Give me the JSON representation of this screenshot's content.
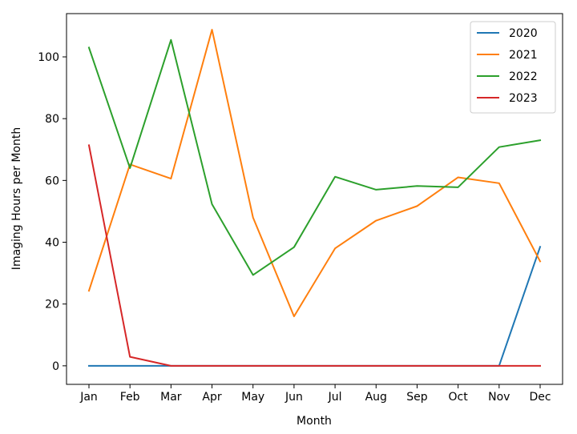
{
  "chart_data": {
    "type": "line",
    "title": "",
    "xlabel": "Month",
    "ylabel": "Imaging Hours per Month",
    "categories": [
      "Jan",
      "Feb",
      "Mar",
      "Apr",
      "May",
      "Jun",
      "Jul",
      "Aug",
      "Sep",
      "Oct",
      "Nov",
      "Dec"
    ],
    "ylim": [
      -6,
      114
    ],
    "yticks": [
      0,
      20,
      40,
      60,
      80,
      100
    ],
    "grid": false,
    "legend_position": "top-right",
    "series": [
      {
        "name": "2020",
        "color": "#1f77b4",
        "values": [
          0,
          0,
          0,
          0,
          0,
          0,
          0,
          0,
          0,
          0,
          0,
          38.5
        ]
      },
      {
        "name": "2021",
        "color": "#ff7f0e",
        "values": [
          24.3,
          65.2,
          60.6,
          108.8,
          48.0,
          16.0,
          38.0,
          47.0,
          51.7,
          61.0,
          59.1,
          33.8
        ]
      },
      {
        "name": "2022",
        "color": "#2ca02c",
        "values": [
          103.0,
          64.0,
          105.5,
          52.3,
          29.4,
          38.4,
          61.2,
          57.0,
          58.2,
          57.8,
          70.8,
          73.0
        ]
      },
      {
        "name": "2023",
        "color": "#d62728",
        "values": [
          71.4,
          2.9,
          0,
          0,
          0,
          0,
          0,
          0,
          0,
          0,
          0,
          0
        ]
      }
    ]
  }
}
